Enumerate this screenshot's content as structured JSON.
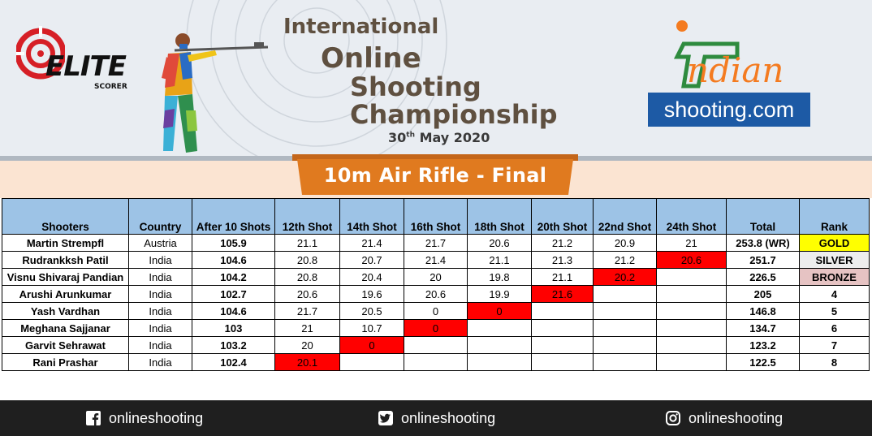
{
  "header": {
    "title_line1": "International",
    "title_line2": "Online",
    "title_line3": "Shooting",
    "title_line4": "Championship",
    "date_day": "30",
    "date_suffix": "th",
    "date_rest": "May 2020",
    "event_title": "10m Air Rifle - Final"
  },
  "logos": {
    "elite_text": "ELITE",
    "elite_sub": "SCORER",
    "indian_text": "ndian",
    "shooting_text": "shooting.com"
  },
  "table": {
    "headers": [
      "Shooters",
      "Country",
      "After 10 Shots",
      "12th Shot",
      "14th Shot",
      "16th Shot",
      "18th Shot",
      "20th Shot",
      "22nd Shot",
      "24th Shot",
      "Total",
      "Rank"
    ],
    "rows": [
      {
        "name": "Martin Strempfl",
        "country": "Austria",
        "after10": "105.9",
        "shots": [
          "21.1",
          "21.4",
          "21.7",
          "20.6",
          "21.2",
          "20.9",
          "21"
        ],
        "elim_index": -1,
        "total": "253.8 (WR)",
        "rank": "GOLD"
      },
      {
        "name": "Rudrankksh Patil",
        "country": "India",
        "after10": "104.6",
        "shots": [
          "20.8",
          "20.7",
          "21.4",
          "21.1",
          "21.3",
          "21.2",
          "20.6"
        ],
        "elim_index": 6,
        "total": "251.7",
        "rank": "SILVER"
      },
      {
        "name": "Visnu Shivaraj Pandian",
        "country": "India",
        "after10": "104.2",
        "shots": [
          "20.8",
          "20.4",
          "20",
          "19.8",
          "21.1",
          "20.2",
          ""
        ],
        "elim_index": 5,
        "total": "226.5",
        "rank": "BRONZE"
      },
      {
        "name": "Arushi Arunkumar",
        "country": "India",
        "after10": "102.7",
        "shots": [
          "20.6",
          "19.6",
          "20.6",
          "19.9",
          "21.6",
          "",
          ""
        ],
        "elim_index": 4,
        "total": "205",
        "rank": "4"
      },
      {
        "name": "Yash Vardhan",
        "country": "India",
        "after10": "104.6",
        "shots": [
          "21.7",
          "20.5",
          "0",
          "0",
          "",
          "",
          ""
        ],
        "elim_index": 3,
        "total": "146.8",
        "rank": "5"
      },
      {
        "name": "Meghana Sajjanar",
        "country": "India",
        "after10": "103",
        "shots": [
          "21",
          "10.7",
          "0",
          "",
          "",
          "",
          ""
        ],
        "elim_index": 2,
        "total": "134.7",
        "rank": "6"
      },
      {
        "name": "Garvit Sehrawat",
        "country": "India",
        "after10": "103.2",
        "shots": [
          "20",
          "0",
          "",
          "",
          "",
          "",
          ""
        ],
        "elim_index": 1,
        "total": "123.2",
        "rank": "7"
      },
      {
        "name": "Rani Prashar",
        "country": "India",
        "after10": "102.4",
        "shots": [
          "20.1",
          "",
          "",
          "",
          "",
          "",
          ""
        ],
        "elim_index": 0,
        "total": "122.5",
        "rank": "8"
      }
    ]
  },
  "footer": {
    "facebook": "onlineshooting",
    "twitter": "onlineshooting",
    "instagram": "onlineshooting"
  },
  "colors": {
    "header_blue": "#9dc3e6",
    "elim_red": "#ff0000",
    "gold": "#ffff00",
    "silver": "#ededed",
    "bronze": "#e6c3c3",
    "banner_orange": "#e07a1f",
    "footer_bg": "#1f1f1f"
  },
  "icons": [
    "facebook-icon",
    "twitter-icon",
    "instagram-icon",
    "target-icon",
    "pistol-icon"
  ]
}
